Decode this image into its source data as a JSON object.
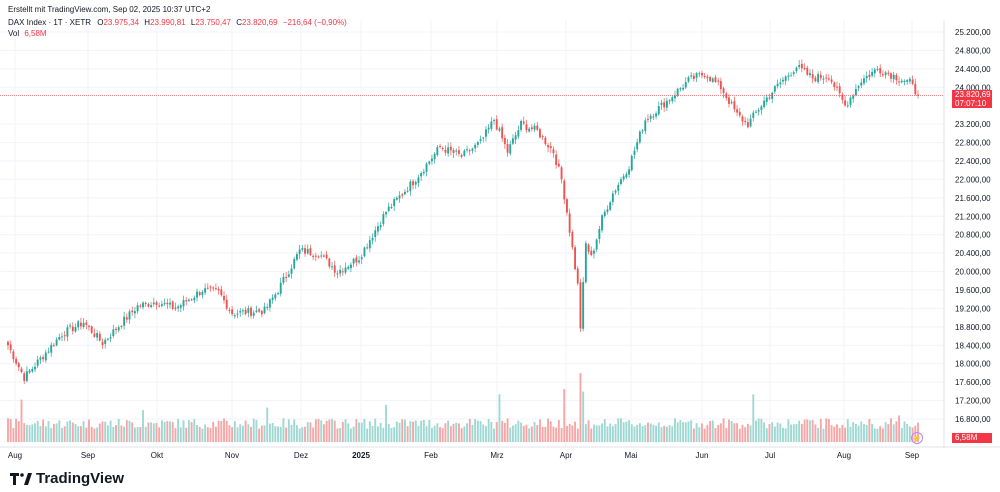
{
  "header": {
    "created": "Erstellt mit TradingView.com, Sep 02, 2025 10:37 UTC+2",
    "symbol": "DAX Index · 1T · XETR",
    "o_label": "O",
    "o_value": "23.975,34",
    "h_label": "H",
    "h_value": "23.990,81",
    "l_label": "L",
    "l_value": "23.750,47",
    "c_label": "C",
    "c_value": "23.820,69",
    "change": "−216,64 (−0,90%)",
    "vol_label": "Vol",
    "vol_value": "6,58M"
  },
  "badges": {
    "price": "23.820,69",
    "countdown": "07:07:10",
    "volume": "6,58M"
  },
  "brand": {
    "name": "TradingView",
    "logo_icon": "tradingview-logo-icon"
  },
  "colors": {
    "up": "#26a69a",
    "down": "#ef5350",
    "vol_up": "#9fd8d3",
    "vol_down": "#f5a6a6",
    "grid": "#f0f3fa"
  },
  "chart_data": {
    "type": "candlestick",
    "y_ticks": [
      "25.200,00",
      "24.800,00",
      "24.400,00",
      "24.000,00",
      "23.200,00",
      "22.800,00",
      "22.400,00",
      "22.000,00",
      "21.600,00",
      "21.200,00",
      "20.800,00",
      "20.400,00",
      "20.000,00",
      "19.600,00",
      "19.200,00",
      "18.800,00",
      "18.400,00",
      "18.000,00",
      "17.600,00",
      "17.200,00",
      "16.800,00"
    ],
    "ylim": [
      16400,
      25200
    ],
    "x_labels": [
      "Aug",
      "Sep",
      "Okt",
      "Nov",
      "Dez",
      "2025",
      "Feb",
      "Mrz",
      "Apr",
      "Mai",
      "Jun",
      "Jul",
      "Aug",
      "Sep"
    ],
    "last_price": 23820.69,
    "key_points": [
      {
        "x": 0,
        "close": 18400
      },
      {
        "x": 6,
        "close": 17700
      },
      {
        "x": 20,
        "close": 18650
      },
      {
        "x": 28,
        "close": 18900
      },
      {
        "x": 35,
        "close": 18450
      },
      {
        "x": 48,
        "close": 19250
      },
      {
        "x": 55,
        "close": 19350
      },
      {
        "x": 62,
        "close": 19200
      },
      {
        "x": 72,
        "close": 19600
      },
      {
        "x": 78,
        "close": 19550
      },
      {
        "x": 83,
        "close": 19100
      },
      {
        "x": 95,
        "close": 19150
      },
      {
        "x": 100,
        "close": 19600
      },
      {
        "x": 108,
        "close": 20450
      },
      {
        "x": 115,
        "close": 20400
      },
      {
        "x": 122,
        "close": 20000
      },
      {
        "x": 130,
        "close": 20300
      },
      {
        "x": 140,
        "close": 21300
      },
      {
        "x": 150,
        "close": 21950
      },
      {
        "x": 160,
        "close": 22700
      },
      {
        "x": 168,
        "close": 22500
      },
      {
        "x": 175,
        "close": 22800
      },
      {
        "x": 180,
        "close": 23300
      },
      {
        "x": 185,
        "close": 22600
      },
      {
        "x": 190,
        "close": 23200
      },
      {
        "x": 196,
        "close": 23050
      },
      {
        "x": 202,
        "close": 22600
      },
      {
        "x": 205,
        "close": 22000
      },
      {
        "x": 207,
        "close": 21300
      },
      {
        "x": 209,
        "close": 20500
      },
      {
        "x": 211,
        "close": 19700
      },
      {
        "x": 212,
        "close": 18800
      },
      {
        "x": 214,
        "close": 20600
      },
      {
        "x": 216,
        "close": 20300
      },
      {
        "x": 220,
        "close": 21150
      },
      {
        "x": 224,
        "close": 21700
      },
      {
        "x": 230,
        "close": 22300
      },
      {
        "x": 236,
        "close": 23300
      },
      {
        "x": 244,
        "close": 23700
      },
      {
        "x": 252,
        "close": 24150
      },
      {
        "x": 258,
        "close": 24300
      },
      {
        "x": 264,
        "close": 24000
      },
      {
        "x": 270,
        "close": 23400
      },
      {
        "x": 274,
        "close": 23200
      },
      {
        "x": 280,
        "close": 23700
      },
      {
        "x": 286,
        "close": 24100
      },
      {
        "x": 292,
        "close": 24450
      },
      {
        "x": 298,
        "close": 24200
      },
      {
        "x": 304,
        "close": 24250
      },
      {
        "x": 310,
        "close": 23600
      },
      {
        "x": 316,
        "close": 24150
      },
      {
        "x": 322,
        "close": 24400
      },
      {
        "x": 328,
        "close": 24250
      },
      {
        "x": 334,
        "close": 24100
      },
      {
        "x": 337,
        "close": 23820.69
      }
    ],
    "volume_spikes": [
      {
        "x": 5,
        "v": 16
      },
      {
        "x": 50,
        "v": 12
      },
      {
        "x": 96,
        "v": 13
      },
      {
        "x": 140,
        "v": 14
      },
      {
        "x": 182,
        "v": 18
      },
      {
        "x": 206,
        "v": 20
      },
      {
        "x": 212,
        "v": 26
      },
      {
        "x": 213,
        "v": 19
      },
      {
        "x": 276,
        "v": 18
      },
      {
        "x": 330,
        "v": 10
      }
    ]
  }
}
